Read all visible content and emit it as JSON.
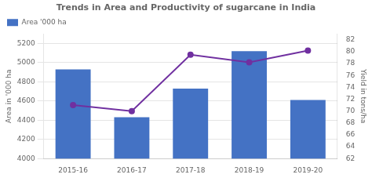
{
  "chart_data": {
    "type": "bar",
    "title": "Trends in Area and Productivity of sugarcane in India",
    "categories": [
      "2015-16",
      "2016-17",
      "2017-18",
      "2018-19",
      "2019-20"
    ],
    "series": [
      {
        "name": "Area '000 ha",
        "type": "bar",
        "color": "#4472C4",
        "values": [
          4930,
          4430,
          4730,
          5120,
          4610
        ]
      },
      {
        "type": "line",
        "color": "#7030A0",
        "marker": "circle",
        "axis": "y2",
        "values": [
          71.0,
          70.0,
          79.5,
          78.2,
          80.2
        ]
      }
    ],
    "ylabel": "Area in '000 ha",
    "y2label": "Yield in tons/ha",
    "ylim": [
      4000,
      5300
    ],
    "yticks": [
      4000,
      4200,
      4400,
      4600,
      4800,
      5000,
      5200
    ],
    "y2lim": [
      62,
      83
    ],
    "y2ticks": [
      62,
      64,
      66,
      68,
      70,
      72,
      74,
      76,
      78,
      80,
      82
    ],
    "grid": true,
    "legend": "upper left"
  }
}
